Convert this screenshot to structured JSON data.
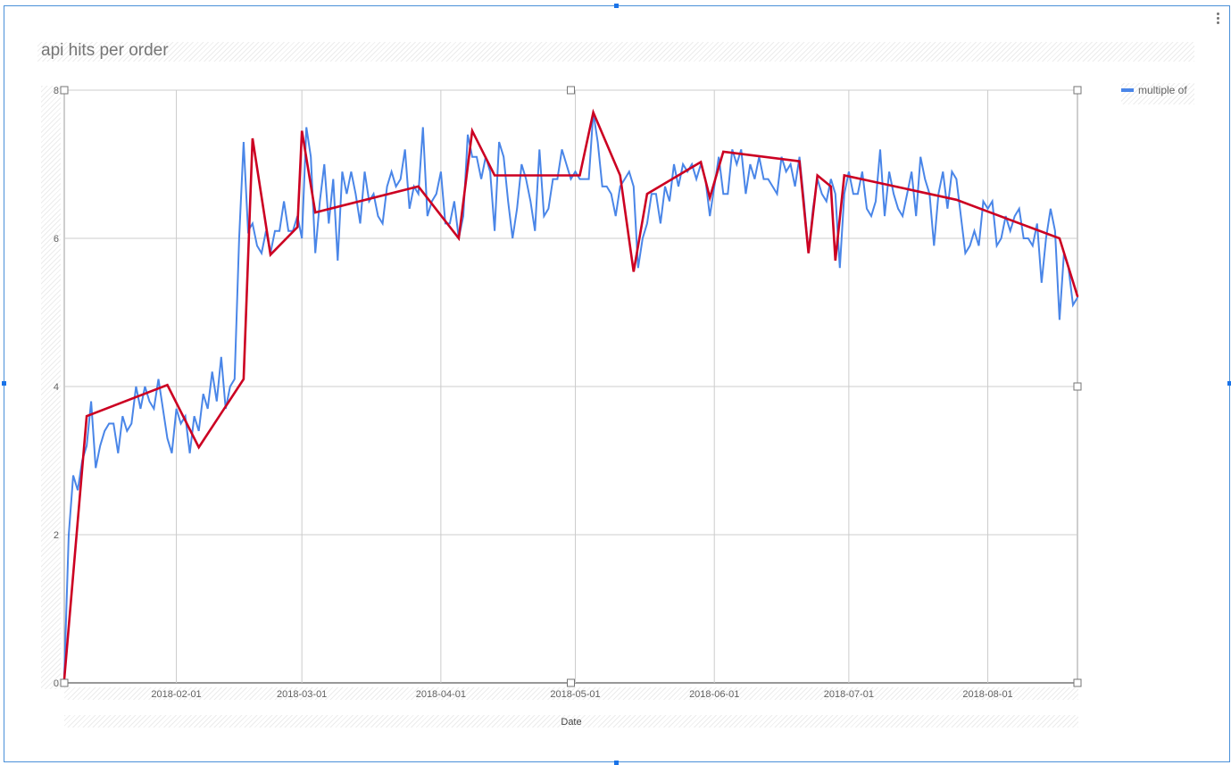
{
  "chart_data": {
    "type": "line",
    "title": "api hits per order",
    "xlabel": "Date",
    "ylabel": "",
    "ylim": [
      0,
      8
    ],
    "xlim": [
      "2018-01-07",
      "2018-08-21"
    ],
    "yticks": [
      0,
      2,
      4,
      6,
      8
    ],
    "xticks": [
      "2018-02-01",
      "2018-03-01",
      "2018-04-01",
      "2018-05-01",
      "2018-06-01",
      "2018-07-01",
      "2018-08-01"
    ],
    "grid": true,
    "legend": "top-right",
    "colors": {
      "series": "#4a86e8",
      "overlay": "#cc0022"
    },
    "series": [
      {
        "name": "multiple of",
        "dates": [
          "2018-01-07",
          "2018-01-08",
          "2018-01-09",
          "2018-01-10",
          "2018-01-11",
          "2018-01-12",
          "2018-01-13",
          "2018-01-14",
          "2018-01-15",
          "2018-01-16",
          "2018-01-17",
          "2018-01-18",
          "2018-01-19",
          "2018-01-20",
          "2018-01-21",
          "2018-01-22",
          "2018-01-23",
          "2018-01-24",
          "2018-01-25",
          "2018-01-26",
          "2018-01-27",
          "2018-01-28",
          "2018-01-29",
          "2018-01-30",
          "2018-01-31",
          "2018-02-01",
          "2018-02-02",
          "2018-02-03",
          "2018-02-04",
          "2018-02-05",
          "2018-02-06",
          "2018-02-07",
          "2018-02-08",
          "2018-02-09",
          "2018-02-10",
          "2018-02-11",
          "2018-02-12",
          "2018-02-13",
          "2018-02-14",
          "2018-02-15",
          "2018-02-16",
          "2018-02-17",
          "2018-02-18",
          "2018-02-19",
          "2018-02-20",
          "2018-02-21",
          "2018-02-22",
          "2018-02-23",
          "2018-02-24",
          "2018-02-25",
          "2018-02-26",
          "2018-02-27",
          "2018-02-28",
          "2018-03-01",
          "2018-03-02",
          "2018-03-03",
          "2018-03-04",
          "2018-03-05",
          "2018-03-06",
          "2018-03-07",
          "2018-03-08",
          "2018-03-09",
          "2018-03-10",
          "2018-03-11",
          "2018-03-12",
          "2018-03-13",
          "2018-03-14",
          "2018-03-15",
          "2018-03-16",
          "2018-03-17",
          "2018-03-18",
          "2018-03-19",
          "2018-03-20",
          "2018-03-21",
          "2018-03-22",
          "2018-03-23",
          "2018-03-24",
          "2018-03-25",
          "2018-03-26",
          "2018-03-27",
          "2018-03-28",
          "2018-03-29",
          "2018-03-30",
          "2018-03-31",
          "2018-04-01",
          "2018-04-02",
          "2018-04-03",
          "2018-04-04",
          "2018-04-05",
          "2018-04-06",
          "2018-04-07",
          "2018-04-08",
          "2018-04-09",
          "2018-04-10",
          "2018-04-11",
          "2018-04-12",
          "2018-04-13",
          "2018-04-14",
          "2018-04-15",
          "2018-04-16",
          "2018-04-17",
          "2018-04-18",
          "2018-04-19",
          "2018-04-20",
          "2018-04-21",
          "2018-04-22",
          "2018-04-23",
          "2018-04-24",
          "2018-04-25",
          "2018-04-26",
          "2018-04-27",
          "2018-04-28",
          "2018-04-29",
          "2018-04-30",
          "2018-05-01",
          "2018-05-02",
          "2018-05-03",
          "2018-05-04",
          "2018-05-05",
          "2018-05-06",
          "2018-05-07",
          "2018-05-08",
          "2018-05-09",
          "2018-05-10",
          "2018-05-11",
          "2018-05-12",
          "2018-05-13",
          "2018-05-14",
          "2018-05-15",
          "2018-05-16",
          "2018-05-17",
          "2018-05-18",
          "2018-05-19",
          "2018-05-20",
          "2018-05-21",
          "2018-05-22",
          "2018-05-23",
          "2018-05-24",
          "2018-05-25",
          "2018-05-26",
          "2018-05-27",
          "2018-05-28",
          "2018-05-29",
          "2018-05-30",
          "2018-05-31",
          "2018-06-01",
          "2018-06-02",
          "2018-06-03",
          "2018-06-04",
          "2018-06-05",
          "2018-06-06",
          "2018-06-07",
          "2018-06-08",
          "2018-06-09",
          "2018-06-10",
          "2018-06-11",
          "2018-06-12",
          "2018-06-13",
          "2018-06-14",
          "2018-06-15",
          "2018-06-16",
          "2018-06-17",
          "2018-06-18",
          "2018-06-19",
          "2018-06-20",
          "2018-06-21",
          "2018-06-22",
          "2018-06-23",
          "2018-06-24",
          "2018-06-25",
          "2018-06-26",
          "2018-06-27",
          "2018-06-28",
          "2018-06-29",
          "2018-06-30",
          "2018-07-01",
          "2018-07-02",
          "2018-07-03",
          "2018-07-04",
          "2018-07-05",
          "2018-07-06",
          "2018-07-07",
          "2018-07-08",
          "2018-07-09",
          "2018-07-10",
          "2018-07-11",
          "2018-07-12",
          "2018-07-13",
          "2018-07-14",
          "2018-07-15",
          "2018-07-16",
          "2018-07-17",
          "2018-07-18",
          "2018-07-19",
          "2018-07-20",
          "2018-07-21",
          "2018-07-22",
          "2018-07-23",
          "2018-07-24",
          "2018-07-25",
          "2018-07-26",
          "2018-07-27",
          "2018-07-28",
          "2018-07-29",
          "2018-07-30",
          "2018-07-31",
          "2018-08-01",
          "2018-08-02",
          "2018-08-03",
          "2018-08-04",
          "2018-08-05",
          "2018-08-06",
          "2018-08-07",
          "2018-08-08",
          "2018-08-09",
          "2018-08-10",
          "2018-08-11",
          "2018-08-12",
          "2018-08-13",
          "2018-08-14",
          "2018-08-15",
          "2018-08-16",
          "2018-08-17",
          "2018-08-18",
          "2018-08-19",
          "2018-08-20",
          "2018-08-21"
        ],
        "values": [
          0.1,
          2.0,
          2.8,
          2.6,
          3.0,
          3.2,
          3.8,
          2.9,
          3.2,
          3.4,
          3.5,
          3.5,
          3.1,
          3.6,
          3.4,
          3.5,
          4.0,
          3.7,
          4.0,
          3.8,
          3.7,
          4.1,
          3.7,
          3.3,
          3.1,
          3.7,
          3.5,
          3.6,
          3.1,
          3.6,
          3.4,
          3.9,
          3.7,
          4.2,
          3.8,
          4.4,
          3.7,
          4.0,
          4.1,
          6.0,
          7.3,
          6.1,
          6.2,
          5.9,
          5.8,
          6.1,
          5.8,
          6.1,
          6.1,
          6.5,
          6.1,
          6.1,
          6.3,
          6.0,
          7.5,
          7.1,
          5.8,
          6.5,
          7.0,
          6.2,
          6.8,
          5.7,
          6.9,
          6.6,
          6.9,
          6.6,
          6.2,
          6.9,
          6.5,
          6.6,
          6.3,
          6.2,
          6.7,
          6.9,
          6.7,
          6.8,
          7.2,
          6.4,
          6.7,
          6.6,
          7.5,
          6.3,
          6.5,
          6.6,
          6.9,
          6.2,
          6.2,
          6.5,
          6.0,
          6.3,
          7.4,
          7.1,
          7.1,
          6.8,
          7.1,
          6.9,
          6.1,
          7.3,
          7.1,
          6.5,
          6.0,
          6.4,
          7.0,
          6.8,
          6.5,
          6.1,
          7.2,
          6.3,
          6.4,
          6.8,
          6.8,
          7.2,
          7.0,
          6.8,
          6.9,
          6.8,
          6.8,
          6.8,
          7.7,
          7.3,
          6.7,
          6.7,
          6.6,
          6.3,
          6.7,
          6.8,
          6.9,
          6.7,
          5.6,
          6.0,
          6.2,
          6.6,
          6.6,
          6.2,
          6.7,
          6.5,
          7.0,
          6.7,
          7.0,
          6.9,
          7.0,
          6.8,
          7.0,
          6.8,
          6.3,
          6.7,
          7.1,
          6.6,
          6.6,
          7.2,
          7.0,
          7.2,
          6.6,
          7.0,
          6.8,
          7.1,
          6.8,
          6.8,
          6.7,
          6.6,
          7.1,
          6.9,
          7.0,
          6.7,
          7.1,
          6.5,
          5.8,
          6.4,
          6.8,
          6.6,
          6.5,
          6.8,
          6.6,
          5.6,
          6.6,
          6.9,
          6.6,
          6.6,
          6.9,
          6.4,
          6.3,
          6.5,
          7.2,
          6.3,
          6.9,
          6.6,
          6.4,
          6.3,
          6.6,
          6.9,
          6.3,
          7.1,
          6.8,
          6.6,
          5.9,
          6.6,
          6.9,
          6.4,
          6.9,
          6.8,
          6.3,
          5.8,
          5.9,
          6.1,
          5.9,
          6.5,
          6.4,
          6.5,
          5.9,
          6.0,
          6.3,
          6.1,
          6.3,
          6.4,
          6.0,
          6.0,
          5.9,
          6.2,
          5.4,
          6.0,
          6.4,
          6.1,
          4.9,
          5.8,
          5.6,
          5.1,
          5.2
        ]
      },
      {
        "name": "",
        "dates": [
          "2018-01-07",
          "2018-01-12",
          "2018-01-30",
          "2018-02-06",
          "2018-02-16",
          "2018-02-18",
          "2018-02-22",
          "2018-02-28",
          "2018-03-01",
          "2018-03-04",
          "2018-03-27",
          "2018-04-05",
          "2018-04-08",
          "2018-04-13",
          "2018-05-02",
          "2018-05-05",
          "2018-05-11",
          "2018-05-14",
          "2018-05-17",
          "2018-05-29",
          "2018-05-31",
          "2018-06-03",
          "2018-06-20",
          "2018-06-22",
          "2018-06-24",
          "2018-06-27",
          "2018-06-28",
          "2018-06-30",
          "2018-07-25",
          "2018-08-17",
          "2018-08-21"
        ],
        "values": [
          0.05,
          3.6,
          4.02,
          3.18,
          4.1,
          7.35,
          5.78,
          6.15,
          7.45,
          6.35,
          6.7,
          6.0,
          7.45,
          6.85,
          6.85,
          7.7,
          6.85,
          5.55,
          6.6,
          7.03,
          6.55,
          7.17,
          7.04,
          5.8,
          6.85,
          6.7,
          5.7,
          6.85,
          6.52,
          6.0,
          5.22
        ]
      }
    ]
  }
}
